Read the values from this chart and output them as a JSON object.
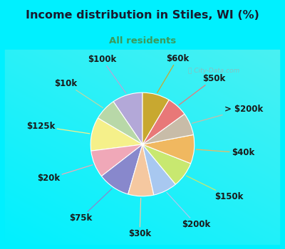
{
  "title": "Income distribution in Stiles, WI (%)",
  "subtitle": "All residents",
  "title_color": "#1a1a2e",
  "subtitle_color": "#3a9a5c",
  "bg_top_color": "#00f0ff",
  "bg_box_color": "#dff5ef",
  "watermark": "ⓘ City-Data.com",
  "labels": [
    "$100k",
    "$10k",
    "$125k",
    "$20k",
    "$75k",
    "$30k",
    "$200k",
    "$150k",
    "$40k",
    "> $200k",
    "$50k",
    "$60k"
  ],
  "values": [
    9.5,
    7.0,
    10.5,
    8.5,
    10.0,
    8.0,
    7.5,
    8.0,
    9.0,
    7.0,
    6.5,
    8.5
  ],
  "colors": [
    "#b3a8d8",
    "#b8d8a8",
    "#f5f08a",
    "#f0a8b8",
    "#8888cc",
    "#f5c8a0",
    "#a8c8f0",
    "#c8e870",
    "#f0b860",
    "#c8bca8",
    "#e87878",
    "#c8a830"
  ],
  "startangle": 90,
  "label_fontsize": 8.5,
  "figsize": [
    4.0,
    3.5
  ],
  "dpi": 100
}
